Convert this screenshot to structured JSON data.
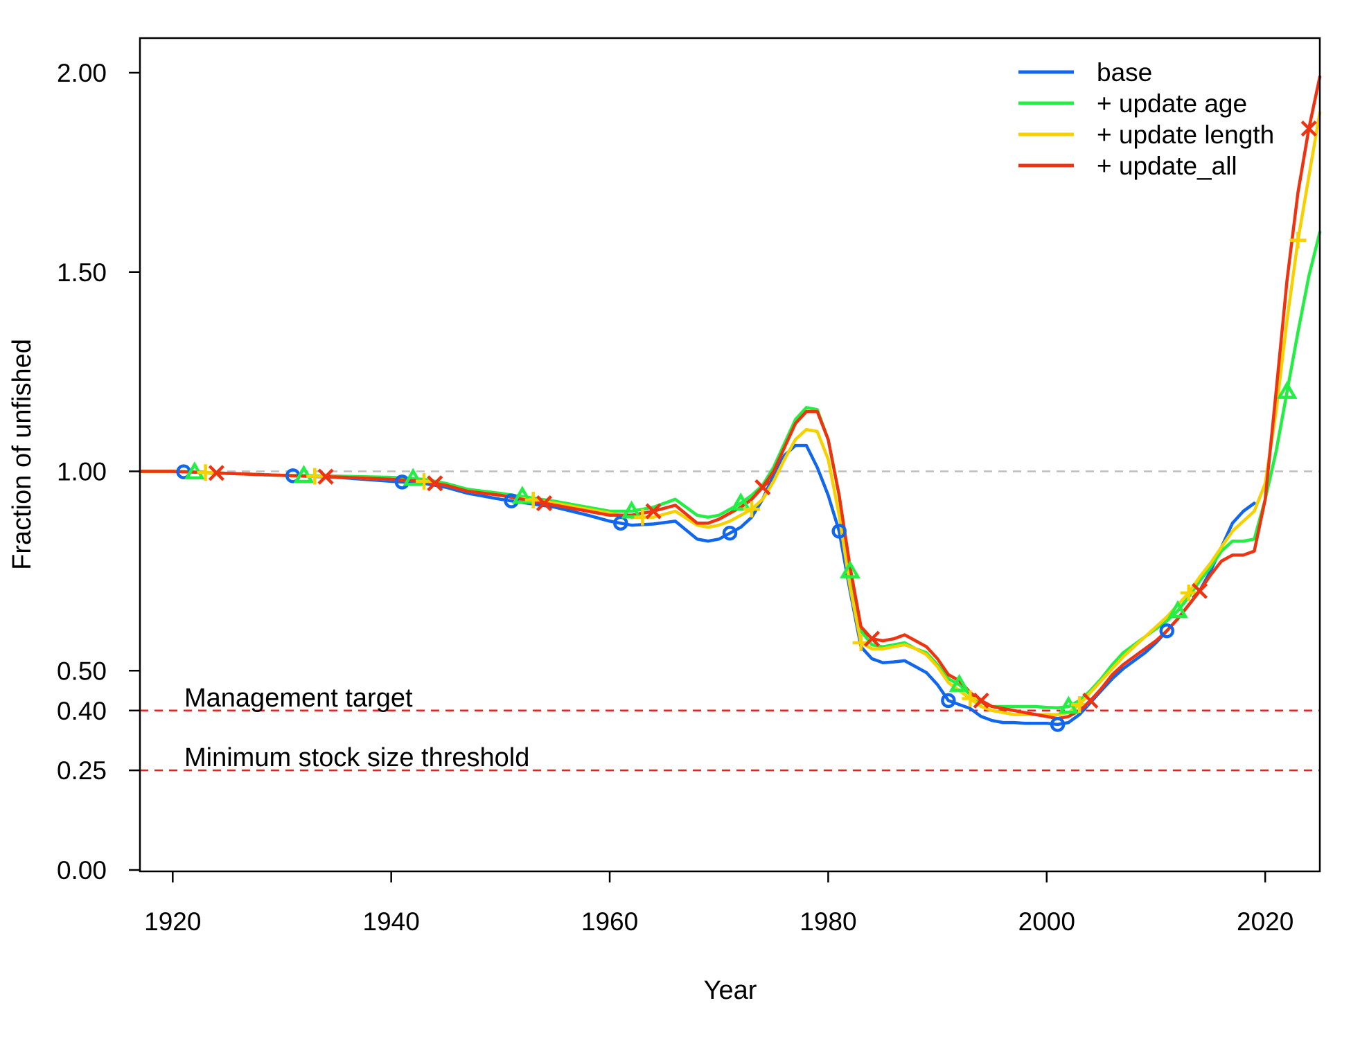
{
  "chart_data": {
    "type": "line",
    "xlabel": "Year",
    "ylabel": "Fraction of unfished",
    "xlim": [
      1917,
      2025
    ],
    "ylim": [
      0,
      2.09
    ],
    "x_ticks": [
      "1920",
      "1940",
      "1960",
      "1980",
      "2000",
      "2020"
    ],
    "x_tick_values": [
      1920,
      1940,
      1960,
      1980,
      2000,
      2020
    ],
    "y_ticks": [
      "0.00",
      "0.25",
      "0.40",
      "0.50",
      "1.00",
      "1.50",
      "2.00"
    ],
    "y_tick_values": [
      0,
      0.25,
      0.4,
      0.5,
      1.0,
      1.5,
      2.0
    ],
    "grid": false,
    "legend_position": "top-right",
    "reference_lines": [
      {
        "value": 1.0,
        "label": "",
        "color": "#bdbdbd"
      },
      {
        "value": 0.4,
        "label": "Management target",
        "color": "#e8231f"
      },
      {
        "value": 0.25,
        "label": "Minimum stock size threshold",
        "color": "#e8231f"
      }
    ],
    "series": [
      {
        "name": "base",
        "color": "#1166ee",
        "marker": "circle",
        "marker_years": [
          1921,
          1931,
          1941,
          1951,
          1961,
          1971,
          1981,
          1991,
          2001,
          2011
        ],
        "x": [
          1917,
          1920,
          1925,
          1930,
          1935,
          1940,
          1943,
          1945,
          1947,
          1950,
          1955,
          1958,
          1960,
          1962,
          1964,
          1966,
          1968,
          1969,
          1970,
          1971,
          1972,
          1973,
          1974,
          1975,
          1976,
          1977,
          1978,
          1979,
          1980,
          1981,
          1982,
          1983,
          1984,
          1985,
          1986,
          1987,
          1988,
          1989,
          1990,
          1991,
          1992,
          1993,
          1994,
          1995,
          1996,
          1997,
          1998,
          1999,
          2000,
          2001,
          2002,
          2003,
          2004,
          2005,
          2006,
          2007,
          2008,
          2009,
          2010,
          2011,
          2012,
          2013,
          2014,
          2015,
          2016,
          2017,
          2018,
          2019
        ],
        "y": [
          1.0,
          1.0,
          0.995,
          0.99,
          0.985,
          0.975,
          0.97,
          0.96,
          0.945,
          0.93,
          0.91,
          0.89,
          0.875,
          0.865,
          0.868,
          0.875,
          0.83,
          0.825,
          0.83,
          0.845,
          0.86,
          0.885,
          0.93,
          0.99,
          1.04,
          1.065,
          1.065,
          1.01,
          0.94,
          0.85,
          0.7,
          0.56,
          0.53,
          0.52,
          0.522,
          0.525,
          0.51,
          0.495,
          0.465,
          0.425,
          0.415,
          0.405,
          0.385,
          0.375,
          0.37,
          0.37,
          0.368,
          0.368,
          0.368,
          0.365,
          0.37,
          0.39,
          0.42,
          0.45,
          0.48,
          0.505,
          0.525,
          0.545,
          0.57,
          0.6,
          0.63,
          0.665,
          0.7,
          0.75,
          0.81,
          0.87,
          0.9,
          0.92
        ]
      },
      {
        "name": "+ update age",
        "color": "#22ee44",
        "marker": "triangle",
        "marker_years": [
          1922,
          1932,
          1942,
          1952,
          1962,
          1972,
          1982,
          1992,
          2002,
          2012,
          2022
        ],
        "x": [
          1917,
          1920,
          1925,
          1930,
          1935,
          1940,
          1943,
          1945,
          1947,
          1950,
          1955,
          1958,
          1960,
          1962,
          1964,
          1966,
          1968,
          1969,
          1970,
          1971,
          1972,
          1973,
          1974,
          1975,
          1976,
          1977,
          1978,
          1979,
          1980,
          1981,
          1982,
          1983,
          1984,
          1985,
          1986,
          1987,
          1988,
          1989,
          1990,
          1991,
          1992,
          1993,
          1994,
          1995,
          1996,
          1997,
          1998,
          1999,
          2000,
          2001,
          2002,
          2003,
          2004,
          2005,
          2006,
          2007,
          2008,
          2009,
          2010,
          2011,
          2012,
          2013,
          2014,
          2015,
          2016,
          2017,
          2018,
          2019,
          2020,
          2021,
          2022,
          2023,
          2024,
          2025
        ],
        "y": [
          1.0,
          1.0,
          0.995,
          0.99,
          0.988,
          0.985,
          0.98,
          0.97,
          0.955,
          0.945,
          0.925,
          0.91,
          0.9,
          0.9,
          0.91,
          0.93,
          0.89,
          0.885,
          0.89,
          0.905,
          0.92,
          0.94,
          0.965,
          1.01,
          1.07,
          1.13,
          1.16,
          1.155,
          1.08,
          0.94,
          0.75,
          0.6,
          0.565,
          0.56,
          0.565,
          0.57,
          0.555,
          0.545,
          0.515,
          0.48,
          0.465,
          0.44,
          0.42,
          0.41,
          0.41,
          0.41,
          0.41,
          0.41,
          0.408,
          0.407,
          0.41,
          0.425,
          0.45,
          0.48,
          0.515,
          0.545,
          0.565,
          0.585,
          0.605,
          0.625,
          0.65,
          0.685,
          0.725,
          0.76,
          0.8,
          0.825,
          0.825,
          0.83,
          0.93,
          1.05,
          1.2,
          1.35,
          1.49,
          1.6
        ]
      },
      {
        "name": " + update length",
        "color": "#f7d000",
        "marker": "plus",
        "marker_years": [
          1923,
          1933,
          1943,
          1953,
          1963,
          1973,
          1983,
          1993,
          2003,
          2013,
          2023
        ],
        "x": [
          1917,
          1920,
          1925,
          1930,
          1935,
          1940,
          1943,
          1945,
          1947,
          1950,
          1955,
          1958,
          1960,
          1962,
          1964,
          1966,
          1968,
          1969,
          1970,
          1971,
          1972,
          1973,
          1974,
          1975,
          1976,
          1977,
          1978,
          1979,
          1980,
          1981,
          1982,
          1983,
          1984,
          1985,
          1986,
          1987,
          1988,
          1989,
          1990,
          1991,
          1992,
          1993,
          1994,
          1995,
          1996,
          1997,
          1998,
          1999,
          2000,
          2001,
          2002,
          2003,
          2004,
          2005,
          2006,
          2007,
          2008,
          2009,
          2010,
          2011,
          2012,
          2013,
          2014,
          2015,
          2016,
          2017,
          2018,
          2019,
          2020,
          2021,
          2022,
          2023,
          2024,
          2025
        ],
        "y": [
          1.0,
          1.0,
          0.995,
          0.99,
          0.986,
          0.98,
          0.975,
          0.965,
          0.95,
          0.94,
          0.92,
          0.905,
          0.895,
          0.885,
          0.885,
          0.9,
          0.865,
          0.86,
          0.865,
          0.875,
          0.89,
          0.905,
          0.93,
          0.975,
          1.03,
          1.08,
          1.105,
          1.1,
          1.03,
          0.89,
          0.71,
          0.57,
          0.555,
          0.555,
          0.56,
          0.565,
          0.555,
          0.54,
          0.51,
          0.47,
          0.45,
          0.43,
          0.41,
          0.4,
          0.395,
          0.39,
          0.39,
          0.39,
          0.39,
          0.39,
          0.395,
          0.415,
          0.445,
          0.475,
          0.505,
          0.535,
          0.56,
          0.585,
          0.61,
          0.635,
          0.665,
          0.695,
          0.735,
          0.77,
          0.81,
          0.85,
          0.875,
          0.9,
          0.97,
          1.15,
          1.38,
          1.58,
          1.74,
          1.9
        ]
      },
      {
        "name": " + update_all",
        "color": "#ee3311",
        "marker": "x",
        "marker_years": [
          1924,
          1934,
          1944,
          1954,
          1964,
          1974,
          1984,
          1994,
          2004,
          2014,
          2024
        ],
        "x": [
          1917,
          1920,
          1925,
          1930,
          1935,
          1940,
          1943,
          1945,
          1947,
          1950,
          1955,
          1958,
          1960,
          1962,
          1964,
          1966,
          1968,
          1969,
          1970,
          1971,
          1972,
          1973,
          1974,
          1975,
          1976,
          1977,
          1978,
          1979,
          1980,
          1981,
          1982,
          1983,
          1984,
          1985,
          1986,
          1987,
          1988,
          1989,
          1990,
          1991,
          1992,
          1993,
          1994,
          1995,
          1996,
          1997,
          1998,
          1999,
          2000,
          2001,
          2002,
          2003,
          2004,
          2005,
          2006,
          2007,
          2008,
          2009,
          2010,
          2011,
          2012,
          2013,
          2014,
          2015,
          2016,
          2017,
          2018,
          2019,
          2020,
          2021,
          2022,
          2023,
          2024,
          2025
        ],
        "y": [
          1.0,
          1.0,
          0.995,
          0.99,
          0.986,
          0.98,
          0.975,
          0.965,
          0.95,
          0.94,
          0.915,
          0.9,
          0.89,
          0.89,
          0.9,
          0.915,
          0.87,
          0.87,
          0.88,
          0.895,
          0.91,
          0.93,
          0.96,
          1.0,
          1.06,
          1.12,
          1.15,
          1.15,
          1.08,
          0.94,
          0.76,
          0.61,
          0.58,
          0.575,
          0.58,
          0.59,
          0.575,
          0.56,
          0.53,
          0.49,
          0.475,
          0.445,
          0.425,
          0.41,
          0.405,
          0.4,
          0.395,
          0.39,
          0.385,
          0.38,
          0.385,
          0.4,
          0.425,
          0.455,
          0.49,
          0.515,
          0.535,
          0.555,
          0.575,
          0.6,
          0.63,
          0.665,
          0.7,
          0.74,
          0.775,
          0.79,
          0.79,
          0.8,
          0.93,
          1.2,
          1.48,
          1.7,
          1.86,
          1.99
        ]
      }
    ]
  }
}
